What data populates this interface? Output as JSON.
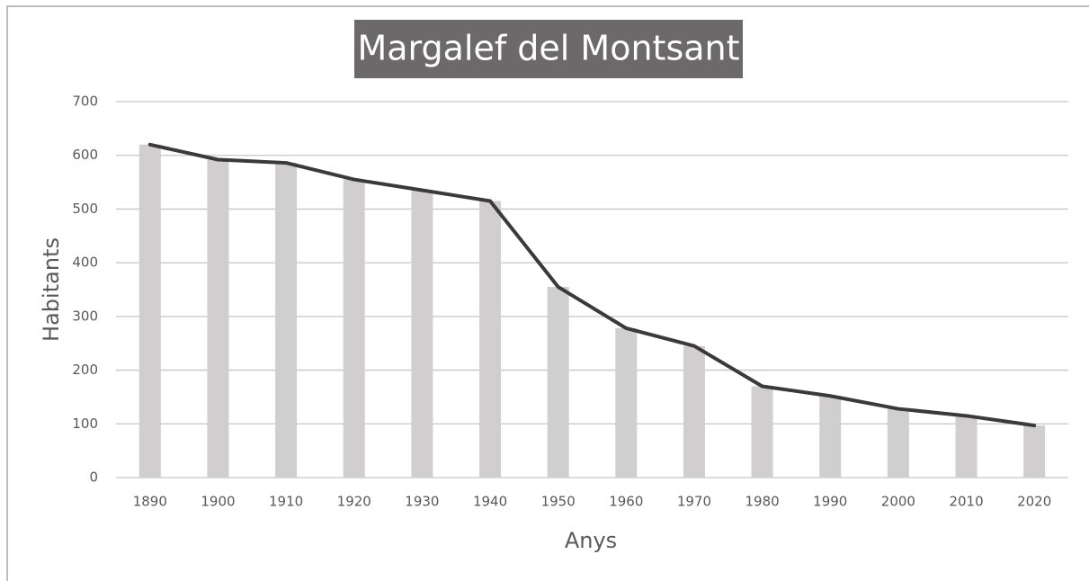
{
  "chart_data": {
    "type": "bar",
    "title": "Margalef del Montsant",
    "x_label": "Anys",
    "y_label": "Habitants",
    "categories": [
      "1890",
      "1900",
      "1910",
      "1920",
      "1930",
      "1940",
      "1950",
      "1960",
      "1970",
      "1980",
      "1990",
      "2000",
      "2010",
      "2020"
    ],
    "values": [
      620,
      592,
      586,
      555,
      535,
      515,
      355,
      278,
      245,
      170,
      152,
      128,
      115,
      97
    ],
    "color": "#d0cece",
    "line_overlay": true,
    "line_color": "#3a3a3a",
    "ylim": [
      0,
      700
    ],
    "yticks": [
      0,
      100,
      200,
      300,
      400,
      500,
      600,
      700
    ],
    "grid": true
  }
}
